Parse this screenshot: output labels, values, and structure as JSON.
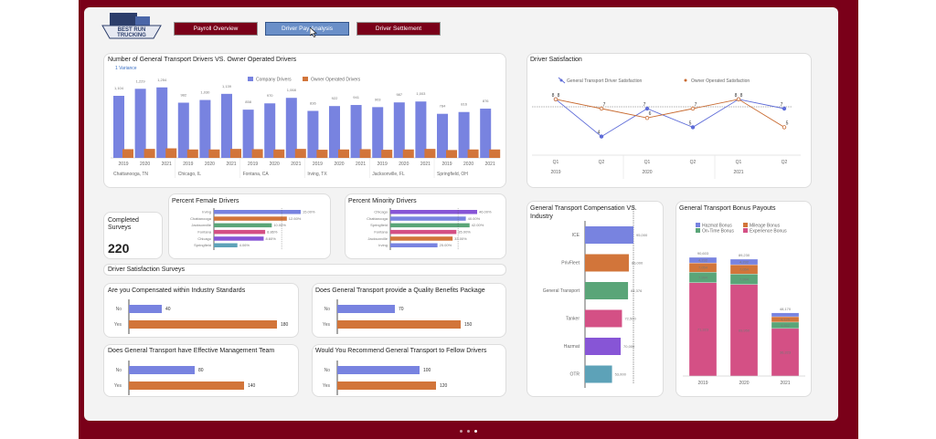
{
  "nav": {
    "payroll": "Payroll Overview",
    "driver_pay": "Driver Pay Analysis",
    "settlement": "Driver Settlement"
  },
  "logo": {
    "line1": "BEST RUN",
    "line2": "TRUCKING"
  },
  "colors": {
    "company": "#7883e0",
    "owner": "#d2753a",
    "green": "#5aa578",
    "pink": "#d45085",
    "purple": "#8755d6",
    "teal": "#5da2b8",
    "brand": "#7a0019"
  },
  "drivers_chart": {
    "title": "Number of General Transport Drivers VS. Owner Operated Drivers",
    "variance": "1 Variance",
    "legend": [
      "Company Drivers",
      "Owner Operated Drivers"
    ],
    "chart_data": {
      "type": "bar",
      "series": [
        {
          "name": "Company Drivers",
          "values": [
            1104,
            1229,
            1254,
            982,
            1030,
            1139,
            858,
            970,
            1068,
            836,
            922,
            941,
            903,
            987,
            1003,
            784,
            816,
            876
          ]
        },
        {
          "name": "Owner Operated Drivers",
          "values": [
            155,
            160,
            170,
            150,
            150,
            160,
            155,
            150,
            160,
            145,
            150,
            155,
            145,
            150,
            160,
            140,
            150,
            150
          ]
        }
      ],
      "years": [
        "2019",
        "2020",
        "2021",
        "2019",
        "2020",
        "2021",
        "2019",
        "2020",
        "2021",
        "2019",
        "2020",
        "2021",
        "2019",
        "2020",
        "2021",
        "2019",
        "2020",
        "2021"
      ],
      "cities": [
        "Chattanooga, TN",
        "Chicago, IL",
        "Fontana, CA",
        "Irving, TX",
        "Jacksonville, FL",
        "Springfield, OH"
      ],
      "labels": [
        "1,104",
        "1,229",
        "1,254",
        "982",
        "1,030",
        "1,139",
        "858",
        "970",
        "1,068",
        "836",
        "922",
        "941",
        "903",
        "987",
        "1,003",
        "784",
        "816",
        "876"
      ]
    }
  },
  "satisfaction_chart": {
    "title": "Driver Satisfaction",
    "legend": [
      "General Transport Driver Satisfaction",
      "Owner Operated Satisfaction"
    ],
    "chart_data": {
      "type": "line",
      "x": [
        "Q1",
        "Q2",
        "Q1",
        "Q2",
        "Q1",
        "Q2"
      ],
      "years": [
        "2019",
        "2020",
        "2021"
      ],
      "series": [
        {
          "name": "General Transport Driver Satisfaction",
          "values": [
            8,
            4,
            7,
            5,
            8,
            7
          ]
        },
        {
          "name": "Owner Operated Satisfaction",
          "values": [
            8,
            7,
            6,
            7,
            8,
            5
          ]
        }
      ]
    }
  },
  "completed": {
    "label1": "Completed",
    "label2": "Surveys",
    "value": "220"
  },
  "female": {
    "title": "Percent Female Drivers",
    "chart_data": {
      "type": "bar",
      "categories": [
        "Irving",
        "Chattanooga",
        "Jacksonville",
        "Fontana",
        "Chicago",
        "Springfield"
      ],
      "values": [
        15,
        12.6,
        10,
        8.86,
        8.6,
        4.06
      ],
      "labels": [
        "15.00%",
        "12.60%",
        "10.00%",
        "8.86%",
        "8.60%",
        "4.06%"
      ]
    }
  },
  "minority": {
    "title": "Percent Minority Drivers",
    "chart_data": {
      "type": "bar",
      "categories": [
        "Chicago",
        "Chattanooga",
        "Springfield",
        "Fontana",
        "Jacksonville",
        "Irving"
      ],
      "values": [
        46,
        40,
        42,
        35,
        33,
        25
      ],
      "labels": [
        "46.00%",
        "40.00%",
        "42.00%",
        "35.00%",
        "33.00%",
        "25.00%"
      ]
    }
  },
  "surveys_header": "Driver Satisfaction Surveys",
  "q1": {
    "title": "Are you Compensated within Industry Standards",
    "no": "40",
    "yes": "180",
    "chart_data": {
      "type": "bar",
      "categories": [
        "No",
        "Yes"
      ],
      "values": [
        40,
        180
      ]
    }
  },
  "q2": {
    "title": "Does General Transport provide a Quality Benefits Package",
    "no": "70",
    "yes": "150",
    "chart_data": {
      "type": "bar",
      "categories": [
        "No",
        "Yes"
      ],
      "values": [
        70,
        150
      ]
    }
  },
  "q3": {
    "title": "Does General Transport have Effective Management Team",
    "no": "80",
    "yes": "140",
    "chart_data": {
      "type": "bar",
      "categories": [
        "No",
        "Yes"
      ],
      "values": [
        80,
        140
      ]
    }
  },
  "q4": {
    "title": "Would You Recommend General Transport to Fellow Drivers",
    "no": "100",
    "yes": "120",
    "chart_data": {
      "type": "bar",
      "categories": [
        "No",
        "Yes"
      ],
      "values": [
        100,
        120
      ]
    }
  },
  "comp": {
    "title1": "General Transport Compensation VS.",
    "title2": "Industry",
    "chart_data": {
      "type": "bar",
      "categories": [
        "ICE",
        "PrivFleet",
        "General Transport",
        "Tanker",
        "Hazmat",
        "OTR"
      ],
      "values": [
        95000,
        86000,
        84376,
        72500,
        70000,
        53000
      ],
      "labels": [
        "95,000",
        "86,000",
        "84,376",
        "72,500",
        "70,000",
        "53,000"
      ]
    }
  },
  "bonus": {
    "title": "General Transport Bonus Payouts",
    "legend": [
      "Hazmat Bonus",
      "Mileage Bonus",
      "On-Time Bonus",
      "Experience Bonus"
    ],
    "chart_data": {
      "type": "bar",
      "categories": [
        "2019",
        "2020",
        "2021"
      ],
      "totals": [
        "90,603",
        "89,230",
        "48,170"
      ],
      "series": [
        {
          "name": "Experience Bonus",
          "values": [
            71323,
            69950,
            36323
          ],
          "labels": [
            "71,323",
            "69,950",
            "36,323"
          ]
        },
        {
          "name": "On-Time Bonus",
          "values": [
            7994,
            7994,
            4852
          ],
          "labels": [
            "7,994",
            "7,994",
            "4,852"
          ]
        },
        {
          "name": "Mileage Bonus",
          "values": [
            7054,
            7054,
            4125
          ],
          "labels": [
            "7,054",
            "7,054",
            "4,125"
          ]
        },
        {
          "name": "Hazmat Bonus",
          "values": [
            4232,
            4232,
            2870
          ],
          "labels": [
            "4,232",
            "4,232",
            ""
          ]
        }
      ]
    }
  }
}
